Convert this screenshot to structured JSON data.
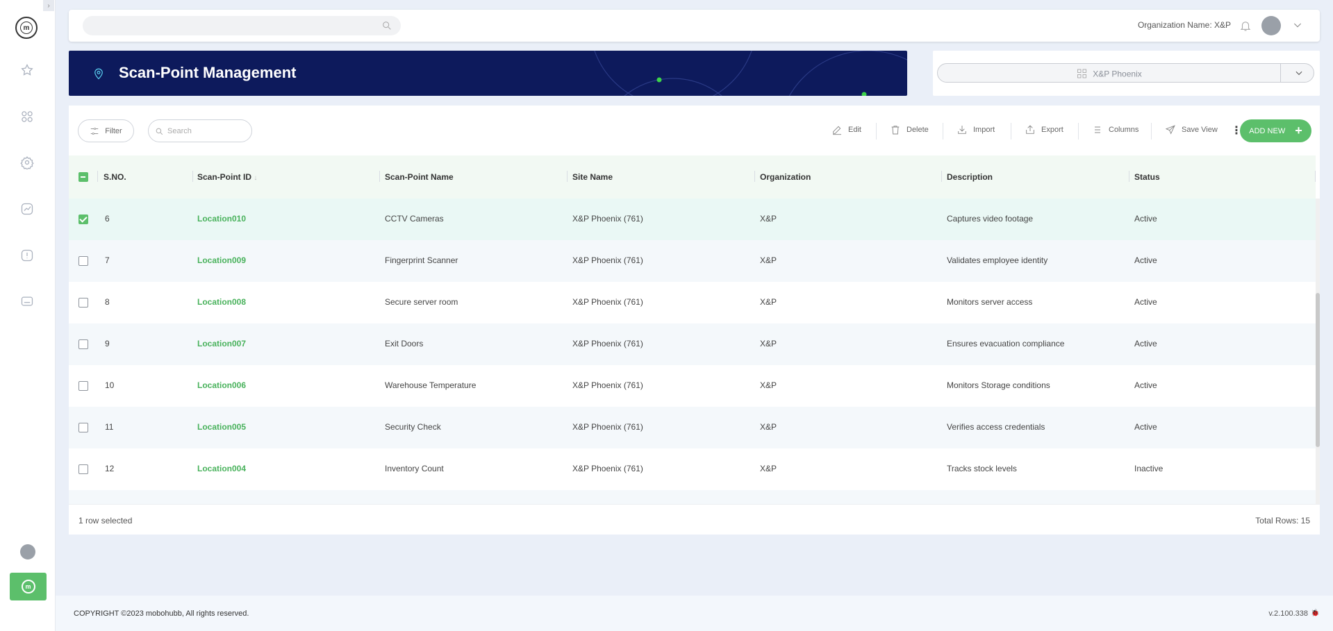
{
  "sidebar": {
    "logo_letter": "m",
    "nav_icons": [
      "star-icon",
      "dashboard-grid-icon",
      "settings-gear-icon",
      "analytics-icon",
      "alert-icon",
      "folder-icon"
    ]
  },
  "topbar": {
    "search_placeholder": "",
    "org_label": "Organization Name: X&P"
  },
  "banner": {
    "title": "Scan-Point Management"
  },
  "site_selector": {
    "selected": "X&P Phoenix"
  },
  "toolbar": {
    "filter_label": "Filter",
    "search_placeholder": "Search",
    "edit_label": "Edit",
    "delete_label": "Delete",
    "import_label": "Import",
    "export_label": "Export",
    "columns_label": "Columns",
    "save_view_label": "Save View",
    "add_new_label": "ADD NEW"
  },
  "table": {
    "headers": {
      "sno": "S.NO.",
      "id": "Scan-Point ID",
      "name": "Scan-Point Name",
      "site": "Site Name",
      "org": "Organization",
      "desc": "Description",
      "status": "Status"
    },
    "rows": [
      {
        "sno": "6",
        "id": "Location010",
        "name": "CCTV Cameras",
        "site": "X&P Phoenix (761)",
        "org": "X&P",
        "desc": "Captures video footage",
        "status": "Active",
        "checked": true
      },
      {
        "sno": "7",
        "id": "Location009",
        "name": "Fingerprint Scanner",
        "site": "X&P Phoenix (761)",
        "org": "X&P",
        "desc": "Validates employee identity",
        "status": "Active",
        "checked": false
      },
      {
        "sno": "8",
        "id": "Location008",
        "name": "Secure server room",
        "site": "X&P Phoenix (761)",
        "org": "X&P",
        "desc": "Monitors server access",
        "status": "Active",
        "checked": false
      },
      {
        "sno": "9",
        "id": "Location007",
        "name": "Exit Doors",
        "site": "X&P Phoenix (761)",
        "org": "X&P",
        "desc": "Ensures evacuation compliance",
        "status": "Active",
        "checked": false
      },
      {
        "sno": "10",
        "id": "Location006",
        "name": "Warehouse Temperature",
        "site": "X&P Phoenix (761)",
        "org": "X&P",
        "desc": "Monitors Storage conditions",
        "status": "Active",
        "checked": false
      },
      {
        "sno": "11",
        "id": "Location005",
        "name": "Security Check",
        "site": "X&P Phoenix (761)",
        "org": "X&P",
        "desc": "Verifies access credentials",
        "status": "Active",
        "checked": false
      },
      {
        "sno": "12",
        "id": "Location004",
        "name": "Inventory Count",
        "site": "X&P Phoenix (761)",
        "org": "X&P",
        "desc": "Tracks stock levels",
        "status": "Inactive",
        "checked": false
      }
    ],
    "selection_info": "1 row selected",
    "total_rows": "Total Rows: 15"
  },
  "footer": {
    "copyright": "COPYRIGHT ©2023 mobohubb, All rights reserved.",
    "version": "v.2.100.338"
  },
  "colors": {
    "accent_green": "#5cbf6b",
    "banner_navy": "#0d1a5c",
    "link_green": "#49b25c"
  }
}
